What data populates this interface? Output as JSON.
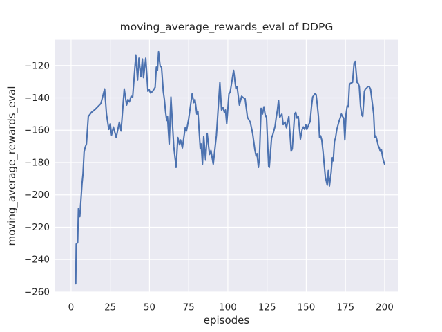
{
  "chart_data": {
    "type": "line",
    "title": "moving_average_rewards_eval of DDPG",
    "grid": true,
    "legend": "none",
    "style": {
      "figure_bg": "#ffffff",
      "axes_bg": "#eaeaf2",
      "grid_color": "#ffffff",
      "line_color": "#4c72b0",
      "text_color": "#262626"
    },
    "x_axis": {
      "label": "episodes",
      "ticks": [
        0,
        25,
        50,
        75,
        100,
        125,
        150,
        175,
        200
      ],
      "range": [
        -10.1,
        208.4
      ]
    },
    "y_axis": {
      "label": "moving_average_rewards_eval",
      "ticks": [
        -120,
        -140,
        -160,
        -180,
        -200,
        -220,
        -240,
        -260
      ],
      "range": [
        -260.2,
        -104.1
      ]
    },
    "series": [
      {
        "name": "moving_average_rewards_eval",
        "points": [
          [
            3,
            -255
          ],
          [
            3.3,
            -230.5
          ],
          [
            4.2,
            -229.5
          ],
          [
            4.7,
            -208.5
          ],
          [
            5.6,
            -213.5
          ],
          [
            7,
            -193
          ],
          [
            7.6,
            -187
          ],
          [
            8.3,
            -173.5
          ],
          [
            9,
            -170.5
          ],
          [
            9.8,
            -168.5
          ],
          [
            11,
            -151.5
          ],
          [
            13,
            -149
          ],
          [
            15.5,
            -147
          ],
          [
            17,
            -145.5
          ],
          [
            19,
            -143.5
          ],
          [
            21.4,
            -134.5
          ],
          [
            22.6,
            -150
          ],
          [
            24.1,
            -159.5
          ],
          [
            25,
            -156
          ],
          [
            25.8,
            -163
          ],
          [
            27,
            -158
          ],
          [
            28.8,
            -164.5
          ],
          [
            30.8,
            -155
          ],
          [
            31.9,
            -160.5
          ],
          [
            33.9,
            -134.5
          ],
          [
            35.4,
            -144.5
          ],
          [
            36.3,
            -141
          ],
          [
            37.2,
            -142.5
          ],
          [
            38.3,
            -139
          ],
          [
            39.3,
            -139.5
          ],
          [
            41.3,
            -113.5
          ],
          [
            42.4,
            -129
          ],
          [
            43.3,
            -115.5
          ],
          [
            44.5,
            -127
          ],
          [
            45.5,
            -116
          ],
          [
            46.2,
            -127.5
          ],
          [
            47.6,
            -115.5
          ],
          [
            49,
            -136
          ],
          [
            49.8,
            -135
          ],
          [
            50.7,
            -137
          ],
          [
            52,
            -136
          ],
          [
            53.6,
            -133.5
          ],
          [
            54.4,
            -121
          ],
          [
            55.1,
            -123
          ],
          [
            55.8,
            -111.5
          ],
          [
            56.8,
            -120.5
          ],
          [
            57.7,
            -121
          ],
          [
            58.8,
            -136
          ],
          [
            59.5,
            -141
          ],
          [
            60.3,
            -149
          ],
          [
            61,
            -154
          ],
          [
            61.5,
            -151.5
          ],
          [
            62.6,
            -168.5
          ],
          [
            63.7,
            -139.5
          ],
          [
            64.5,
            -153
          ],
          [
            65.5,
            -170
          ],
          [
            67,
            -183
          ],
          [
            68.1,
            -164.5
          ],
          [
            69.2,
            -169
          ],
          [
            69.8,
            -166
          ],
          [
            71,
            -171
          ],
          [
            72.8,
            -158.5
          ],
          [
            73.6,
            -160.5
          ],
          [
            75,
            -153
          ],
          [
            77.2,
            -137.5
          ],
          [
            78.3,
            -143
          ],
          [
            79,
            -141
          ],
          [
            80.2,
            -150
          ],
          [
            80.9,
            -148.5
          ],
          [
            82.4,
            -171.5
          ],
          [
            83,
            -168.5
          ],
          [
            83.8,
            -181
          ],
          [
            84.6,
            -164
          ],
          [
            85.8,
            -178.5
          ],
          [
            86.8,
            -162
          ],
          [
            88.3,
            -175
          ],
          [
            89.2,
            -172.5
          ],
          [
            90.7,
            -181
          ],
          [
            92.7,
            -163
          ],
          [
            94.9,
            -130.5
          ],
          [
            96,
            -147.5
          ],
          [
            96.9,
            -146
          ],
          [
            97.8,
            -149
          ],
          [
            98.5,
            -147.5
          ],
          [
            99.3,
            -156
          ],
          [
            100.7,
            -137.5
          ],
          [
            101.5,
            -136.5
          ],
          [
            103.7,
            -123
          ],
          [
            105.1,
            -134
          ],
          [
            105.9,
            -133
          ],
          [
            107.4,
            -144.5
          ],
          [
            108.8,
            -139
          ],
          [
            110,
            -140
          ],
          [
            111,
            -140.5
          ],
          [
            112.5,
            -152
          ],
          [
            114.3,
            -155
          ],
          [
            115.8,
            -162
          ],
          [
            117.2,
            -172
          ],
          [
            118,
            -176
          ],
          [
            118.6,
            -174.5
          ],
          [
            119.5,
            -183
          ],
          [
            120.1,
            -177
          ],
          [
            121.2,
            -146.5
          ],
          [
            122.1,
            -150
          ],
          [
            123,
            -145.5
          ],
          [
            124,
            -151.5
          ],
          [
            124.6,
            -151
          ],
          [
            126,
            -182.5
          ],
          [
            126.4,
            -183
          ],
          [
            127.9,
            -164.5
          ],
          [
            128.6,
            -163
          ],
          [
            130.1,
            -157.5
          ],
          [
            130.8,
            -152.5
          ],
          [
            131.6,
            -147.5
          ],
          [
            132.3,
            -141.5
          ],
          [
            133.1,
            -152
          ],
          [
            134.5,
            -150
          ],
          [
            135.3,
            -156.5
          ],
          [
            136.6,
            -155
          ],
          [
            137.4,
            -158.5
          ],
          [
            138.9,
            -151.5
          ],
          [
            140.4,
            -173
          ],
          [
            141.1,
            -171.5
          ],
          [
            142.6,
            -150
          ],
          [
            143.3,
            -149
          ],
          [
            144.1,
            -152.5
          ],
          [
            144.9,
            -151.5
          ],
          [
            146.3,
            -165.5
          ],
          [
            147.4,
            -159.5
          ],
          [
            148.2,
            -158
          ],
          [
            149,
            -159.5
          ],
          [
            149.7,
            -156.5
          ],
          [
            150.4,
            -159.5
          ],
          [
            151.4,
            -157
          ],
          [
            152.5,
            -154.5
          ],
          [
            153.3,
            -146
          ],
          [
            154.1,
            -139.5
          ],
          [
            155.5,
            -137.5
          ],
          [
            156.3,
            -138
          ],
          [
            157.1,
            -144.5
          ],
          [
            157.8,
            -151.5
          ],
          [
            158.5,
            -164.5
          ],
          [
            159.2,
            -163.5
          ],
          [
            159.9,
            -166
          ],
          [
            160.7,
            -173
          ],
          [
            161.4,
            -180.5
          ],
          [
            162.2,
            -189
          ],
          [
            162.8,
            -191.5
          ],
          [
            163.4,
            -194
          ],
          [
            164.1,
            -185
          ],
          [
            164.8,
            -194.5
          ],
          [
            165.9,
            -186
          ],
          [
            166.6,
            -177
          ],
          [
            167.2,
            -179
          ],
          [
            168,
            -167
          ],
          [
            168.7,
            -164.5
          ],
          [
            169.5,
            -159.5
          ],
          [
            170.9,
            -154.5
          ],
          [
            171.6,
            -152.5
          ],
          [
            172.4,
            -150
          ],
          [
            173.1,
            -151.5
          ],
          [
            173.9,
            -152.5
          ],
          [
            174.6,
            -166
          ],
          [
            175.4,
            -150
          ],
          [
            176.1,
            -145
          ],
          [
            176.8,
            -145.5
          ],
          [
            177.5,
            -132
          ],
          [
            178.2,
            -131
          ],
          [
            179.5,
            -130.5
          ],
          [
            180.5,
            -118.5
          ],
          [
            181.2,
            -117.5
          ],
          [
            182.4,
            -130.5
          ],
          [
            183.1,
            -131
          ],
          [
            183.8,
            -133
          ],
          [
            184.6,
            -145
          ],
          [
            185.3,
            -150
          ],
          [
            186,
            -151.5
          ],
          [
            187.1,
            -136
          ],
          [
            187.8,
            -134.5
          ],
          [
            188.5,
            -134
          ],
          [
            189.3,
            -133
          ],
          [
            190.1,
            -133
          ],
          [
            191,
            -134.5
          ],
          [
            191.4,
            -137.5
          ],
          [
            192.1,
            -143
          ],
          [
            193,
            -150
          ],
          [
            193.7,
            -164.5
          ],
          [
            194.4,
            -163.5
          ],
          [
            195.1,
            -166
          ],
          [
            195.9,
            -169.5
          ],
          [
            196.6,
            -171
          ],
          [
            197.2,
            -173
          ],
          [
            197.9,
            -172
          ],
          [
            198.8,
            -177
          ],
          [
            199.3,
            -179
          ],
          [
            200,
            -181
          ]
        ]
      }
    ]
  }
}
